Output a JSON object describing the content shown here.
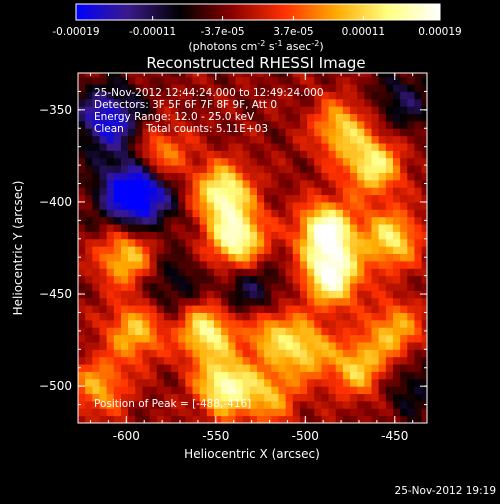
{
  "chart_data": {
    "type": "heatmap",
    "title": "Reconstructed RHESSI Image",
    "xlabel": "Heliocentric X (arcsec)",
    "ylabel": "Heliocentric Y (arcsec)",
    "x_range": [
      -627,
      -432
    ],
    "y_range": [
      -520,
      -330
    ],
    "x_ticks": [
      -600,
      -550,
      -500,
      -450
    ],
    "y_ticks": [
      -350,
      -400,
      -450,
      -500
    ],
    "x_tick_labels": [
      "-600",
      "-550",
      "-500",
      "-450"
    ],
    "y_tick_labels": [
      "−350",
      "−400",
      "−450",
      "−500"
    ],
    "colorbar": {
      "range": [
        -0.00019,
        0.00019
      ],
      "ticks": [
        "-0.00019",
        "-0.00011",
        "-3.7e-05",
        "3.7e-05",
        "0.00011",
        "0.00019"
      ],
      "tick_values": [
        -0.00019,
        -0.00011,
        -3.7e-05,
        3.7e-05,
        0.00011,
        0.00019
      ],
      "unit_main": "(photons cm",
      "unit_sup1": "-2",
      "unit_mid": " s",
      "unit_sup2": "-1",
      "unit_end": " asec",
      "unit_sup3": "-2",
      "unit_close": ")",
      "palette": [
        "#0000ff",
        "#3a1a8a",
        "#000000",
        "#8a0000",
        "#ff3000",
        "#ffaa00",
        "#ffff80",
        "#ffffff"
      ]
    },
    "annotations": {
      "time_range": "25-Nov-2012 12:44:24.000 to 12:49:24.000",
      "detectors": "Detectors: 3F 5F 6F 7F 8F 9F, Att 0",
      "energy_range": "Energy Range: 12.0 - 25.0 keV",
      "algorithm": "Clean",
      "total_counts": "Total counts: 5.11E+03",
      "peak_position": "Position of Peak = [-488,-416]"
    },
    "peak": {
      "x": -488,
      "y": -416
    },
    "bright_sources": [
      {
        "x": -581,
        "y": -375,
        "intensity": 0.55
      },
      {
        "x": -546,
        "y": -395,
        "intensity": 0.85
      },
      {
        "x": -538,
        "y": -420,
        "intensity": 0.9
      },
      {
        "x": -488,
        "y": -416,
        "intensity": 1.0
      },
      {
        "x": -485,
        "y": -440,
        "intensity": 0.95
      },
      {
        "x": -480,
        "y": -360,
        "intensity": 0.6
      },
      {
        "x": -462,
        "y": -380,
        "intensity": 0.75
      },
      {
        "x": -452,
        "y": -420,
        "intensity": 0.7
      },
      {
        "x": -600,
        "y": -430,
        "intensity": 0.65
      },
      {
        "x": -595,
        "y": -470,
        "intensity": 0.6
      },
      {
        "x": -555,
        "y": -470,
        "intensity": 0.8
      },
      {
        "x": -545,
        "y": -500,
        "intensity": 0.85
      },
      {
        "x": -520,
        "y": -470,
        "intensity": 0.55
      },
      {
        "x": -500,
        "y": -480,
        "intensity": 0.6
      },
      {
        "x": -470,
        "y": -490,
        "intensity": 0.6
      },
      {
        "x": -450,
        "y": -470,
        "intensity": 0.55
      },
      {
        "x": -615,
        "y": -500,
        "intensity": 0.5
      },
      {
        "x": -520,
        "y": -505,
        "intensity": 0.5
      }
    ],
    "dark_sources": [
      {
        "x": -610,
        "y": -355,
        "intensity": 0.7
      },
      {
        "x": -590,
        "y": -395,
        "intensity": 0.6
      },
      {
        "x": -600,
        "y": -395,
        "intensity": 0.5
      },
      {
        "x": -530,
        "y": -450,
        "intensity": 0.4
      },
      {
        "x": -445,
        "y": -345,
        "intensity": 0.35
      },
      {
        "x": -575,
        "y": -445,
        "intensity": 0.3
      },
      {
        "x": -440,
        "y": -500,
        "intensity": 0.3
      }
    ]
  },
  "footer": {
    "timestamp": "25-Nov-2012 19:19"
  }
}
